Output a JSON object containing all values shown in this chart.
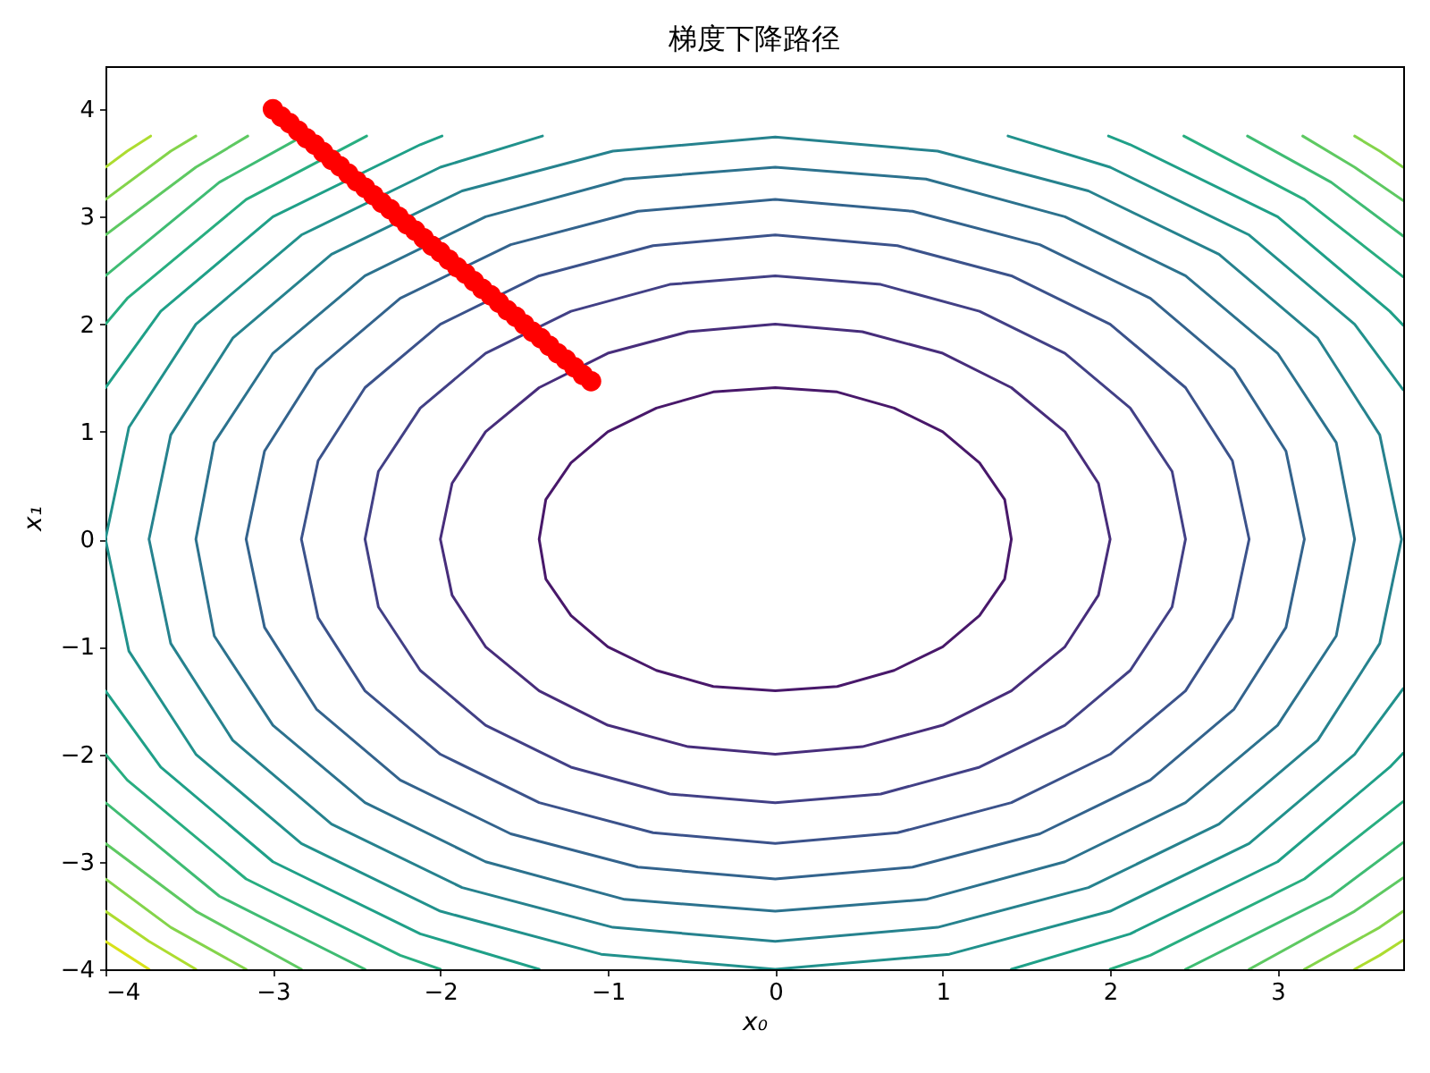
{
  "chart_data": {
    "type": "line",
    "title": "梯度下降路径",
    "xlabel": "x₀",
    "ylabel": "x₁",
    "xlim": [
      -4,
      3.75
    ],
    "ylim": [
      -4,
      4.4
    ],
    "xticks": [
      -4,
      -3,
      -2,
      -1,
      0,
      1,
      2,
      3
    ],
    "yticks": [
      -4,
      -3,
      -2,
      -1,
      0,
      1,
      2,
      3,
      4
    ],
    "series": [
      {
        "color": "#48186a",
        "x": [
          1.41,
          1.37,
          1.22,
          1,
          0.71,
          0.37,
          0,
          -0.37,
          -0.71,
          -1,
          -1.22,
          -1.37,
          -1.41,
          null,
          -1.41,
          -1.37,
          -1.22,
          -1,
          -0.71,
          -0.37,
          0,
          0.37,
          0.71,
          1,
          1.22,
          1.37,
          1.41
        ],
        "values": [
          0,
          0.37,
          0.71,
          1,
          1.22,
          1.37,
          1.41,
          1.37,
          1.22,
          1,
          0.71,
          0.37,
          0,
          null,
          0,
          -0.37,
          -0.71,
          -1,
          -1.22,
          -1.37,
          -1.41,
          -1.37,
          -1.22,
          -1,
          -0.71,
          -0.37,
          0
        ]
      },
      {
        "color": "#472d7b",
        "x": [
          2,
          1.93,
          1.73,
          1.41,
          1,
          0.52,
          0,
          -0.52,
          -1,
          -1.41,
          -1.73,
          -1.93,
          -2,
          null,
          -2,
          -1.93,
          -1.73,
          -1.41,
          -1,
          -0.52,
          0,
          0.52,
          1,
          1.41,
          1.73,
          1.93,
          2
        ],
        "values": [
          0,
          0.52,
          1,
          1.41,
          1.73,
          1.93,
          2,
          1.93,
          1.73,
          1.41,
          1,
          0.52,
          0,
          null,
          0,
          -0.52,
          -1,
          -1.41,
          -1.73,
          -1.93,
          -2,
          -1.93,
          -1.73,
          -1.41,
          -1,
          -0.52,
          0
        ]
      },
      {
        "color": "#424086",
        "x": [
          2.45,
          2.37,
          2.12,
          1.73,
          1.22,
          0.63,
          0,
          -0.63,
          -1.22,
          -1.73,
          -2.12,
          -2.37,
          -2.45,
          null,
          -2.45,
          -2.37,
          -2.12,
          -1.73,
          -1.22,
          -0.63,
          0,
          0.63,
          1.22,
          1.73,
          2.12,
          2.37,
          2.45
        ],
        "values": [
          0,
          0.63,
          1.22,
          1.73,
          2.12,
          2.37,
          2.45,
          2.37,
          2.12,
          1.73,
          1.22,
          0.63,
          0,
          null,
          0,
          -0.63,
          -1.22,
          -1.73,
          -2.12,
          -2.37,
          -2.45,
          -2.37,
          -2.12,
          -1.73,
          -1.22,
          -0.63,
          0
        ]
      },
      {
        "color": "#3b528b",
        "x": [
          2.83,
          2.73,
          2.45,
          2,
          1.41,
          0.73,
          0,
          -0.73,
          -1.41,
          -2,
          -2.45,
          -2.73,
          -2.83,
          null,
          -2.83,
          -2.73,
          -2.45,
          -2,
          -1.41,
          -0.73,
          0,
          0.73,
          1.41,
          2,
          2.45,
          2.73,
          2.83
        ],
        "values": [
          0,
          0.73,
          1.41,
          2,
          2.45,
          2.73,
          2.83,
          2.73,
          2.45,
          2,
          1.41,
          0.73,
          0,
          null,
          0,
          -0.73,
          -1.41,
          -2,
          -2.45,
          -2.73,
          -2.83,
          -2.73,
          -2.45,
          -2,
          -1.41,
          -0.73,
          0
        ]
      },
      {
        "color": "#33638d",
        "x": [
          3.16,
          3.05,
          2.74,
          2.24,
          1.58,
          0.82,
          0,
          -0.82,
          -1.58,
          -2.24,
          -2.74,
          -3.05,
          -3.16,
          null,
          -3.16,
          -3.05,
          -2.74,
          -2.24,
          -1.58,
          -0.82,
          0,
          0.82,
          1.58,
          2.24,
          2.74,
          3.05,
          3.16
        ],
        "values": [
          0,
          0.82,
          1.58,
          2.24,
          2.74,
          3.05,
          3.16,
          3.05,
          2.74,
          2.24,
          1.58,
          0.82,
          0,
          null,
          0,
          -0.82,
          -1.58,
          -2.24,
          -2.74,
          -3.05,
          -3.16,
          -3.05,
          -2.74,
          -2.24,
          -1.58,
          -0.82,
          0
        ]
      },
      {
        "color": "#2c728e",
        "x": [
          3.46,
          3.35,
          3,
          2.45,
          1.73,
          0.9,
          0,
          -0.9,
          -1.73,
          -2.45,
          -3,
          -3.35,
          -3.46,
          null,
          -3.46,
          -3.35,
          -3,
          -2.45,
          -1.73,
          -0.9,
          0,
          0.9,
          1.73,
          2.45,
          3,
          3.35,
          3.46
        ],
        "values": [
          0,
          0.9,
          1.73,
          2.45,
          3,
          3.35,
          3.46,
          3.35,
          3,
          2.45,
          1.73,
          0.9,
          0,
          null,
          0,
          -0.9,
          -1.73,
          -2.45,
          -3,
          -3.35,
          -3.46,
          -3.35,
          -3,
          -2.45,
          -1.73,
          -0.9,
          0
        ]
      },
      {
        "color": "#26828e",
        "x": [
          3.74,
          3.61,
          3.24,
          2.65,
          1.87,
          0.97,
          0,
          -0.97,
          -1.87,
          -2.65,
          -3.24,
          -3.61,
          -3.74,
          null,
          -3.74,
          -3.61,
          -3.24,
          -2.65,
          -1.87,
          -0.97,
          0,
          0.97,
          1.87,
          2.65,
          3.24,
          3.61,
          3.74
        ],
        "values": [
          0,
          0.97,
          1.87,
          2.65,
          3.24,
          3.61,
          3.74,
          3.61,
          3.24,
          2.65,
          1.87,
          0.97,
          0,
          null,
          0,
          -0.97,
          -1.87,
          -2.65,
          -3.24,
          -3.61,
          -3.74,
          -3.61,
          -3.24,
          -2.65,
          -1.87,
          -0.97,
          0
        ]
      },
      {
        "color": "#21918c",
        "x": [
          3.75,
          3.46,
          2.83,
          2,
          1.04,
          0,
          -1.04,
          -2,
          -2.83,
          -3.46,
          -3.86,
          -4,
          null,
          -4,
          -3.86,
          -3.46,
          -2.83,
          -2,
          -1.39,
          null,
          1.39,
          2,
          2.83,
          3.46,
          3.75
        ],
        "values": [
          -1.39,
          -2,
          -2.83,
          -3.46,
          -3.86,
          -4,
          -3.86,
          -3.46,
          -2.83,
          -2,
          -1.04,
          0,
          null,
          0,
          1.04,
          2,
          2.83,
          3.46,
          3.75,
          null,
          3.75,
          3.46,
          2.83,
          2,
          1.39
        ]
      },
      {
        "color": "#1fa088",
        "x": [
          -4,
          -3.67,
          -3,
          -2.12,
          -1.99,
          null,
          1.99,
          2.12,
          3,
          3.67,
          3.75,
          null,
          3.75,
          3.67,
          3,
          2.12,
          1.41,
          null,
          -1.41,
          -2.12,
          -3,
          -3.67,
          -4
        ],
        "values": [
          1.41,
          2.12,
          3,
          3.67,
          3.75,
          null,
          3.75,
          3.67,
          3,
          2.12,
          1.99,
          null,
          -1.99,
          -2.12,
          -3,
          -3.67,
          -4,
          null,
          -4,
          -3.67,
          -3,
          -2.12,
          -1.41
        ]
      },
      {
        "color": "#28ae80",
        "x": [
          -4,
          -3.87,
          -3.16,
          -2.44,
          null,
          2.44,
          3.16,
          3.75,
          null,
          3.75,
          3.16,
          2.24,
          2,
          null,
          -2,
          -2.24,
          -3.16,
          -3.87,
          -4
        ],
        "values": [
          2,
          2.24,
          3.16,
          3.75,
          null,
          3.75,
          3.16,
          2.44,
          null,
          -2.44,
          -3.16,
          -3.87,
          -4,
          null,
          -4,
          -3.87,
          -3.16,
          -2.24,
          -2
        ]
      },
      {
        "color": "#3fbc73",
        "x": [
          -4,
          -3.32,
          -2.82,
          null,
          2.82,
          3.32,
          3.75,
          null,
          3.75,
          3.32,
          2.45,
          null,
          -2.45,
          -3.32,
          -4
        ],
        "values": [
          2.45,
          3.32,
          3.75,
          null,
          3.75,
          3.32,
          2.82,
          null,
          -2.82,
          -3.32,
          -4,
          null,
          -4,
          -3.32,
          -2.45
        ]
      },
      {
        "color": "#5ec962",
        "x": [
          -4,
          -3.46,
          -3.15,
          null,
          3.15,
          3.46,
          3.75,
          null,
          3.75,
          3.46,
          2.83,
          null,
          -2.83,
          -3.46,
          -4
        ],
        "values": [
          2.83,
          3.46,
          3.75,
          null,
          3.75,
          3.46,
          3.15,
          null,
          -3.15,
          -3.46,
          -4,
          null,
          -4,
          -3.46,
          -2.83
        ]
      },
      {
        "color": "#84d44b",
        "x": [
          -4,
          -3.61,
          -3.46,
          null,
          3.46,
          3.61,
          3.75,
          null,
          3.75,
          3.61,
          3.16,
          null,
          -3.16,
          -3.61,
          -4
        ],
        "values": [
          3.16,
          3.61,
          3.75,
          null,
          3.75,
          3.61,
          3.46,
          null,
          -3.46,
          -3.61,
          -4,
          null,
          -4,
          -3.61,
          -3.16
        ]
      },
      {
        "color": "#addc30",
        "x": [
          -4,
          -3.87,
          -3.73,
          null,
          3.75,
          3.61,
          3.46,
          null,
          -3.46,
          -3.74,
          -4
        ],
        "values": [
          3.46,
          3.61,
          3.75,
          null,
          -3.73,
          -3.87,
          -4,
          null,
          -4,
          -3.74,
          -3.46
        ]
      },
      {
        "color": "#d8e219",
        "x": [
          -3.74,
          -3.87,
          -4
        ],
        "values": [
          -4,
          -3.87,
          -3.74
        ]
      },
      {
        "type": "scatter",
        "marker": "circle",
        "color": "#ff0000",
        "x": [
          -3,
          -2.95,
          -2.9,
          -2.85,
          -2.8,
          -2.75,
          -2.7,
          -2.65,
          -2.6,
          -2.55,
          -2.5,
          -2.45,
          -2.4,
          -2.35,
          -2.3,
          -2.25,
          -2.2,
          -2.15,
          -2.1,
          -2.05,
          -2,
          -1.95,
          -1.9,
          -1.85,
          -1.8,
          -1.75,
          -1.7,
          -1.65,
          -1.6,
          -1.55,
          -1.5,
          -1.45,
          -1.4,
          -1.35,
          -1.3,
          -1.25,
          -1.2,
          -1.15,
          -1.1
        ],
        "values": [
          4,
          3.93,
          3.87,
          3.8,
          3.73,
          3.67,
          3.6,
          3.53,
          3.47,
          3.4,
          3.33,
          3.27,
          3.2,
          3.13,
          3.07,
          3,
          2.93,
          2.87,
          2.8,
          2.73,
          2.67,
          2.6,
          2.53,
          2.47,
          2.4,
          2.33,
          2.27,
          2.2,
          2.13,
          2.07,
          2,
          1.93,
          1.87,
          1.8,
          1.73,
          1.67,
          1.6,
          1.53,
          1.47
        ]
      }
    ]
  }
}
